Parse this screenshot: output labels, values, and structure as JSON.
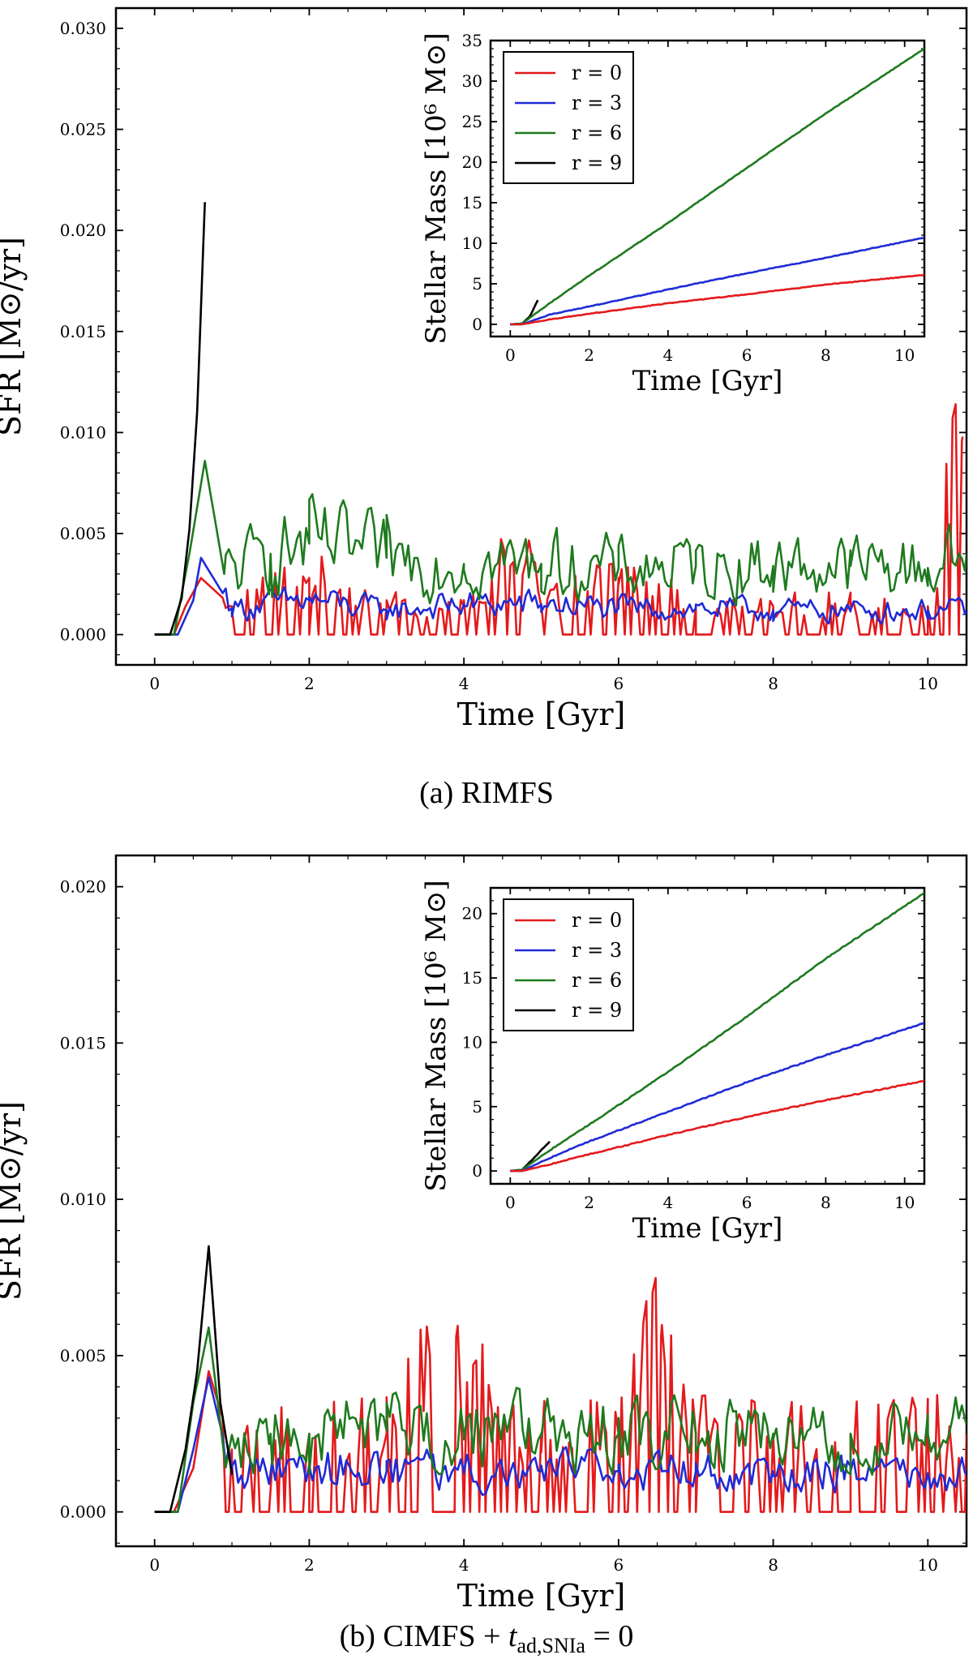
{
  "chart_data": [
    {
      "id": "a",
      "type": "line",
      "caption": "(a) RIMFS",
      "xlabel": "Time [Gyr]",
      "ylabel": "SFR [M⊙/yr]",
      "xlim": [
        -0.5,
        10.5
      ],
      "ylim": [
        -0.0015,
        0.031
      ],
      "xticks": [
        0,
        2,
        4,
        6,
        8,
        10
      ],
      "yticks": [
        0.0,
        0.005,
        0.01,
        0.015,
        0.02,
        0.025,
        0.03
      ],
      "ytick_labels": [
        "0.000",
        "0.005",
        "0.010",
        "0.015",
        "0.020",
        "0.025",
        "0.030"
      ],
      "series": [
        {
          "name": "r = 0",
          "color": "#e41a1c",
          "pattern": "spiky",
          "values": [
            [
              0,
              0
            ],
            [
              0.25,
              0
            ],
            [
              0.4,
              0.0014
            ],
            [
              0.6,
              0.0028
            ],
            [
              1.0,
              0.0014
            ],
            [
              2.0,
              0.0028
            ],
            [
              3.0,
              0.0014
            ],
            [
              4.0,
              0.0014
            ],
            [
              4.85,
              0.0045
            ],
            [
              5.0,
              0.0014
            ],
            [
              6.0,
              0.0028
            ],
            [
              7.0,
              0.0014
            ],
            [
              8.0,
              0.0014
            ],
            [
              9.0,
              0.0014
            ],
            [
              10.0,
              0.0014
            ],
            [
              10.45,
              0.0098
            ]
          ]
        },
        {
          "name": "r = 3",
          "color": "#1f2bd6",
          "pattern": "wiggly",
          "values": [
            [
              0,
              0
            ],
            [
              0.3,
              0
            ],
            [
              0.5,
              0.0017
            ],
            [
              0.6,
              0.0038
            ],
            [
              1.0,
              0.0013
            ],
            [
              2.0,
              0.0017
            ],
            [
              3.0,
              0.0012
            ],
            [
              4.0,
              0.0015
            ],
            [
              5.0,
              0.0015
            ],
            [
              6.0,
              0.0013
            ],
            [
              7.0,
              0.0013
            ],
            [
              8.0,
              0.0012
            ],
            [
              9.0,
              0.0012
            ],
            [
              10.0,
              0.0012
            ],
            [
              10.5,
              0.0012
            ]
          ]
        },
        {
          "name": "r = 6",
          "color": "#1e7a1e",
          "pattern": "wiggly",
          "values": [
            [
              0,
              0
            ],
            [
              0.25,
              0
            ],
            [
              0.45,
              0.004
            ],
            [
              0.65,
              0.0086
            ],
            [
              0.9,
              0.003
            ],
            [
              1.5,
              0.004
            ],
            [
              2.0,
              0.0045
            ],
            [
              3.0,
              0.0038
            ],
            [
              4.0,
              0.0035
            ],
            [
              5.0,
              0.0035
            ],
            [
              6.0,
              0.0033
            ],
            [
              7.0,
              0.0034
            ],
            [
              8.0,
              0.0034
            ],
            [
              9.0,
              0.0034
            ],
            [
              10.0,
              0.0033
            ],
            [
              10.5,
              0.004
            ]
          ]
        },
        {
          "name": "r = 9",
          "color": "#000000",
          "pattern": "smooth",
          "values": [
            [
              0,
              0
            ],
            [
              0.2,
              0
            ],
            [
              0.35,
              0.0018
            ],
            [
              0.45,
              0.0052
            ],
            [
              0.55,
              0.011
            ],
            [
              0.65,
              0.0214
            ]
          ]
        }
      ],
      "inset": {
        "xlabel": "Time [Gyr]",
        "ylabel": "Stellar Mass [10⁶ M⊙]",
        "xlim": [
          -0.5,
          10.5
        ],
        "ylim": [
          -1.5,
          35
        ],
        "xticks": [
          0,
          2,
          4,
          6,
          8,
          10
        ],
        "yticks": [
          0,
          5,
          10,
          15,
          20,
          25,
          30,
          35
        ],
        "legend_location": "top-left",
        "series": [
          {
            "name": "r = 0",
            "color": "#e41a1c",
            "values": [
              [
                0,
                0
              ],
              [
                0.3,
                0
              ],
              [
                1,
                0.6
              ],
              [
                2,
                1.3
              ],
              [
                4,
                2.6
              ],
              [
                6,
                3.7
              ],
              [
                8,
                4.9
              ],
              [
                10.5,
                6.1
              ]
            ]
          },
          {
            "name": "r = 3",
            "color": "#1f2bd6",
            "values": [
              [
                0,
                0
              ],
              [
                0.3,
                0
              ],
              [
                1,
                1.2
              ],
              [
                2,
                2.2
              ],
              [
                4,
                4.3
              ],
              [
                6,
                6.3
              ],
              [
                8,
                8.2
              ],
              [
                10.5,
                10.7
              ]
            ]
          },
          {
            "name": "r = 6",
            "color": "#1e7a1e",
            "values": [
              [
                0,
                0
              ],
              [
                0.3,
                0.1
              ],
              [
                1,
                2.6
              ],
              [
                2,
                6.0
              ],
              [
                4,
                12.5
              ],
              [
                6,
                19.3
              ],
              [
                8,
                26.0
              ],
              [
                10.5,
                34.0
              ]
            ]
          },
          {
            "name": "r = 9",
            "color": "#000000",
            "values": [
              [
                0,
                0
              ],
              [
                0.3,
                0.1
              ],
              [
                0.5,
                1.0
              ],
              [
                0.7,
                3.0
              ]
            ]
          }
        ]
      }
    },
    {
      "id": "b",
      "type": "line",
      "caption_prefix": "(b) CIMFS + ",
      "caption_t": "t",
      "caption_sub": "ad,SNIa",
      "caption_suffix": " = 0",
      "xlabel": "Time [Gyr]",
      "ylabel": "SFR [M⊙/yr]",
      "xlim": [
        -0.5,
        10.5
      ],
      "ylim": [
        -0.0011,
        0.021
      ],
      "xticks": [
        0,
        2,
        4,
        6,
        8,
        10
      ],
      "yticks": [
        0.0,
        0.005,
        0.01,
        0.015,
        0.02
      ],
      "ytick_labels": [
        "0.000",
        "0.005",
        "0.010",
        "0.015",
        "0.020"
      ],
      "series": [
        {
          "name": "r = 0",
          "color": "#e41a1c",
          "pattern": "spiky",
          "values": [
            [
              0,
              0
            ],
            [
              0.25,
              0
            ],
            [
              0.5,
              0.0014
            ],
            [
              0.7,
              0.0045
            ],
            [
              1.0,
              0.002
            ],
            [
              2.0,
              0.0025
            ],
            [
              3.0,
              0.0025
            ],
            [
              3.9,
              0.0056
            ],
            [
              4.5,
              0.0025
            ],
            [
              5.0,
              0.0025
            ],
            [
              6.0,
              0.0025
            ],
            [
              6.55,
              0.0056
            ],
            [
              7.0,
              0.0025
            ],
            [
              8.0,
              0.0025
            ],
            [
              9.0,
              0.0025
            ],
            [
              10.0,
              0.0025
            ],
            [
              10.5,
              0.0025
            ]
          ]
        },
        {
          "name": "r = 3",
          "color": "#1f2bd6",
          "pattern": "wiggly",
          "values": [
            [
              0,
              0
            ],
            [
              0.3,
              0
            ],
            [
              0.5,
              0.002
            ],
            [
              0.7,
              0.0043
            ],
            [
              1.0,
              0.0012
            ],
            [
              2.0,
              0.0015
            ],
            [
              3.0,
              0.0013
            ],
            [
              4.0,
              0.0013
            ],
            [
              5.0,
              0.0013
            ],
            [
              6.0,
              0.0013
            ],
            [
              7.0,
              0.0013
            ],
            [
              8.0,
              0.0013
            ],
            [
              9.0,
              0.0013
            ],
            [
              10.0,
              0.0012
            ],
            [
              10.5,
              0.0012
            ]
          ]
        },
        {
          "name": "r = 6",
          "color": "#1e7a1e",
          "pattern": "wiggly",
          "values": [
            [
              0,
              0
            ],
            [
              0.3,
              0
            ],
            [
              0.5,
              0.0035
            ],
            [
              0.7,
              0.0059
            ],
            [
              0.9,
              0.0018
            ],
            [
              1.5,
              0.0025
            ],
            [
              2.0,
              0.0025
            ],
            [
              3.0,
              0.0026
            ],
            [
              4.0,
              0.0025
            ],
            [
              5.0,
              0.0025
            ],
            [
              6.0,
              0.0025
            ],
            [
              7.0,
              0.0025
            ],
            [
              8.0,
              0.0025
            ],
            [
              9.0,
              0.0025
            ],
            [
              10.0,
              0.0025
            ],
            [
              10.5,
              0.0028
            ]
          ]
        },
        {
          "name": "r = 9",
          "color": "#000000",
          "pattern": "smooth",
          "values": [
            [
              0,
              0
            ],
            [
              0.2,
              0
            ],
            [
              0.4,
              0.002
            ],
            [
              0.55,
              0.0045
            ],
            [
              0.7,
              0.0085
            ],
            [
              0.85,
              0.0035
            ],
            [
              1.0,
              0.0012
            ]
          ]
        }
      ],
      "inset": {
        "xlabel": "Time [Gyr]",
        "ylabel": "Stellar Mass [10⁶ M⊙]",
        "xlim": [
          -0.5,
          10.5
        ],
        "ylim": [
          -1.0,
          22
        ],
        "xticks": [
          0,
          2,
          4,
          6,
          8,
          10
        ],
        "yticks": [
          0,
          5,
          10,
          15,
          20
        ],
        "legend_location": "top-left",
        "series": [
          {
            "name": "r = 0",
            "color": "#e41a1c",
            "values": [
              [
                0,
                0
              ],
              [
                0.3,
                0
              ],
              [
                1,
                0.5
              ],
              [
                2,
                1.3
              ],
              [
                4,
                2.8
              ],
              [
                6,
                4.2
              ],
              [
                8,
                5.5
              ],
              [
                10.5,
                7.0
              ]
            ]
          },
          {
            "name": "r = 3",
            "color": "#1f2bd6",
            "values": [
              [
                0,
                0
              ],
              [
                0.3,
                0
              ],
              [
                1,
                1.0
              ],
              [
                2,
                2.3
              ],
              [
                4,
                4.6
              ],
              [
                6,
                6.9
              ],
              [
                8,
                9.0
              ],
              [
                10.5,
                11.5
              ]
            ]
          },
          {
            "name": "r = 6",
            "color": "#1e7a1e",
            "values": [
              [
                0,
                0
              ],
              [
                0.3,
                0.1
              ],
              [
                1,
                1.6
              ],
              [
                2,
                3.6
              ],
              [
                4,
                7.7
              ],
              [
                6,
                12.0
              ],
              [
                8,
                16.5
              ],
              [
                10.5,
                21.6
              ]
            ]
          },
          {
            "name": "r = 9",
            "color": "#000000",
            "values": [
              [
                0,
                0
              ],
              [
                0.3,
                0.1
              ],
              [
                0.6,
                1.0
              ],
              [
                1.0,
                2.3
              ]
            ]
          }
        ]
      }
    }
  ]
}
